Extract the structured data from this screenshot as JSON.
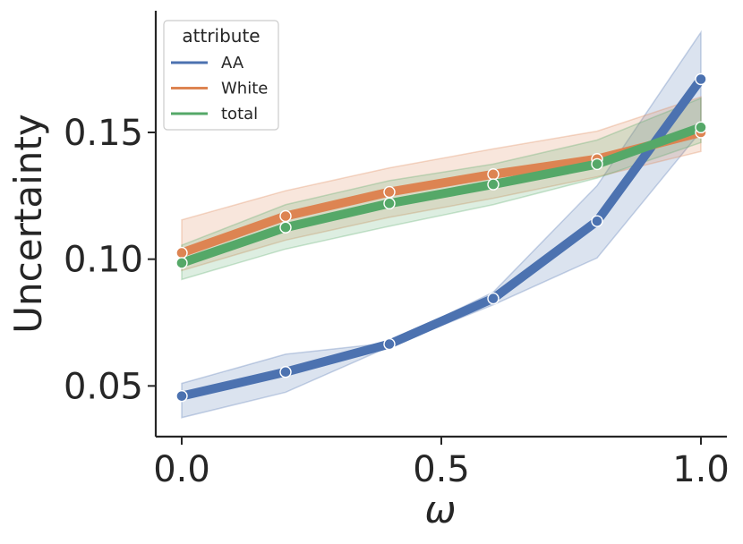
{
  "chart_data": {
    "type": "line",
    "title": "",
    "xlabel": "ω",
    "ylabel": "Uncertainty",
    "xlim": [
      -0.05,
      1.05
    ],
    "ylim": [
      0.03,
      0.198
    ],
    "x_ticks": [
      0.0,
      0.5,
      1.0
    ],
    "x_tick_labels": [
      "0.0",
      "0.5",
      "1.0"
    ],
    "y_ticks": [
      0.05,
      0.1,
      0.15
    ],
    "y_tick_labels": [
      "0.05",
      "0.10",
      "0.15"
    ],
    "x": [
      0.0,
      0.2,
      0.4,
      0.6,
      0.8,
      1.0
    ],
    "legend": {
      "title": "attribute",
      "position": "top-left"
    },
    "grid": false,
    "series": [
      {
        "name": "AA",
        "color": "#4c72b0",
        "values": [
          0.046,
          0.0555,
          0.0665,
          0.0845,
          0.115,
          0.171
        ],
        "ci_low": [
          0.0375,
          0.0475,
          0.0655,
          0.082,
          0.1005,
          0.1505
        ],
        "ci_high": [
          0.051,
          0.0625,
          0.067,
          0.087,
          0.129,
          0.1895
        ]
      },
      {
        "name": "White",
        "color": "#dd8452",
        "values": [
          0.1025,
          0.117,
          0.1265,
          0.1335,
          0.1395,
          0.15
        ],
        "ci_low": [
          0.0955,
          0.1075,
          0.1165,
          0.124,
          0.1325,
          0.1425
        ],
        "ci_high": [
          0.1155,
          0.127,
          0.136,
          0.1435,
          0.1505,
          0.164
        ]
      },
      {
        "name": "total",
        "color": "#55a868",
        "values": [
          0.0985,
          0.1125,
          0.122,
          0.1295,
          0.1375,
          0.152
        ],
        "ci_low": [
          0.092,
          0.104,
          0.113,
          0.1215,
          0.132,
          0.146
        ],
        "ci_high": [
          0.1055,
          0.1215,
          0.131,
          0.1375,
          0.147,
          0.1635
        ]
      }
    ]
  }
}
